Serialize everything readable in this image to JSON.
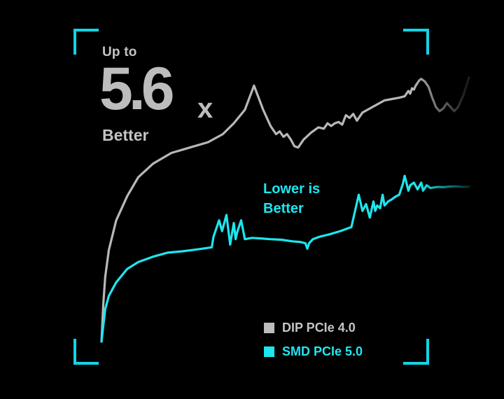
{
  "headline": {
    "prefix": "Up to",
    "value": "5.6",
    "unit": "x",
    "suffix": "Better"
  },
  "annotation": {
    "line1": "Lower is",
    "line2": "Better"
  },
  "colors": {
    "background": "#000000",
    "frame": "#13d3e6",
    "series_dip": "#b8b8b8",
    "series_smd": "#1de6ef"
  },
  "chart_data": {
    "type": "line",
    "title": "",
    "xlabel": "",
    "ylabel": "",
    "xlim": [
      0,
      100
    ],
    "ylim": [
      0,
      100
    ],
    "grid": false,
    "legend_position": "bottom-right",
    "series": [
      {
        "name": "DIP PCIe 4.0",
        "color": "#b8b8b8",
        "x": [
          0,
          0.5,
          1,
          2,
          4,
          7,
          10,
          14,
          19,
          24,
          29,
          33,
          36,
          39,
          41.5,
          44,
          46,
          47.5,
          48.5,
          49.5,
          50.5,
          51.5,
          52.5,
          53.5,
          55,
          57,
          59,
          60.5,
          61.5,
          62.5,
          63.5,
          64.5,
          65.5,
          66.5,
          67.5,
          68.5,
          69.5,
          71,
          73,
          75,
          77,
          79,
          81,
          82.5,
          83.5,
          84,
          84.5,
          85,
          85.5,
          86,
          86.5,
          87,
          88,
          89,
          90,
          91,
          92,
          93,
          94,
          95,
          96,
          97,
          98.5,
          100
        ],
        "y": [
          0,
          14,
          24,
          34,
          45,
          54,
          61,
          66,
          70,
          72,
          74,
          77,
          81,
          86,
          95,
          86,
          80,
          77,
          78,
          76,
          77,
          75,
          72.5,
          72,
          75,
          77.5,
          79.5,
          79,
          81,
          80,
          81,
          81.5,
          80.5,
          84,
          83,
          84.5,
          82,
          85,
          86.5,
          88,
          89.5,
          90,
          90.5,
          91,
          93,
          92,
          94,
          93.5,
          95,
          96,
          97,
          97.5,
          96.5,
          94.5,
          90.5,
          87,
          85.5,
          86.5,
          88.5,
          87,
          85.5,
          87,
          91.5,
          98
        ]
      },
      {
        "name": "SMD PCIe 5.0",
        "color": "#1de6ef",
        "x": [
          0,
          0.5,
          1,
          2,
          4,
          7,
          10,
          14,
          18,
          22,
          26,
          30,
          30.5,
          32,
          32.8,
          34,
          35,
          36,
          36.5,
          37,
          38,
          39,
          41,
          44,
          46,
          49,
          52,
          54,
          55.5,
          56,
          56.5,
          57.5,
          59.5,
          62,
          65,
          68,
          68.5,
          70,
          71,
          72,
          73,
          74,
          74.5,
          75,
          75.8,
          76.5,
          77,
          78,
          79,
          80,
          81,
          82,
          82.5,
          83.5,
          84,
          85,
          86,
          87,
          87.5,
          88.5,
          89.5,
          90.5,
          91.5,
          93,
          94.5,
          96.5,
          98.5,
          100
        ],
        "y": [
          0,
          6,
          12,
          17,
          22,
          27,
          29.5,
          31.5,
          33,
          33.5,
          34.2,
          35,
          39,
          45,
          41,
          47,
          36,
          44,
          38,
          41,
          45,
          38,
          38.5,
          38.2,
          38,
          37.8,
          37.2,
          37,
          36.5,
          34.5,
          36.5,
          38,
          39,
          39.8,
          41,
          42.5,
          45.5,
          54.5,
          48.5,
          51,
          46,
          52,
          48.5,
          50.5,
          49.5,
          54.5,
          50.5,
          52,
          52.8,
          53.8,
          54.5,
          58.5,
          61.5,
          56,
          58,
          59,
          56.5,
          59,
          56,
          58,
          57,
          57.2,
          57.4,
          57.3,
          57.5,
          57.6,
          57.4,
          57.5
        ]
      }
    ]
  }
}
